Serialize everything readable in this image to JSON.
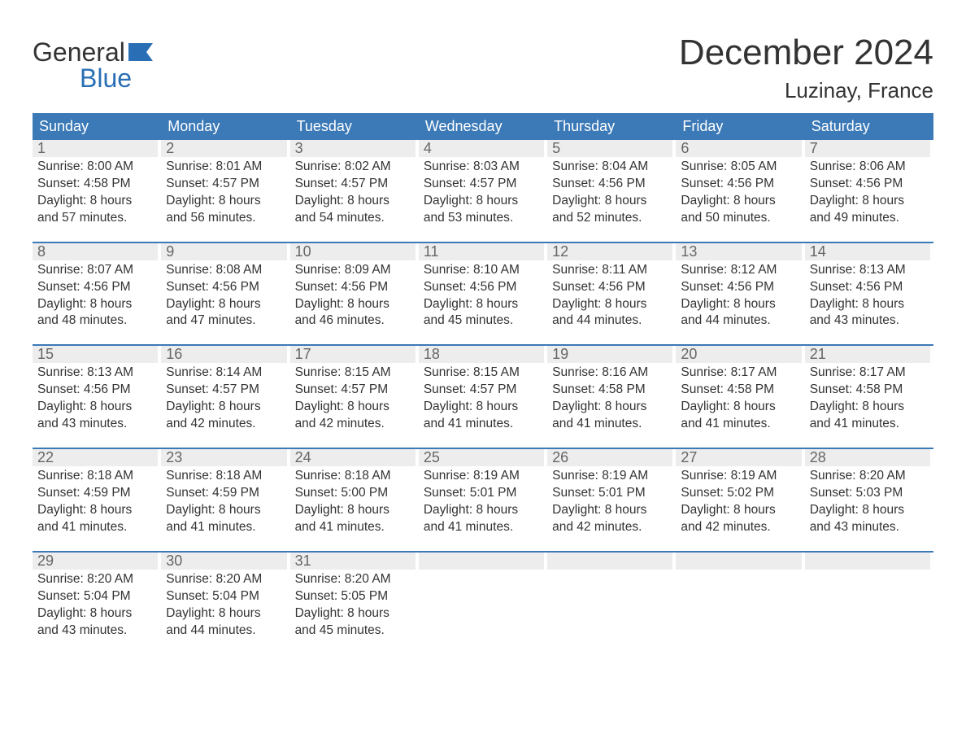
{
  "logo": {
    "line1": "General",
    "line2": "Blue"
  },
  "title": "December 2024",
  "location": "Luzinay, France",
  "colors": {
    "header_bg": "#3b79b7",
    "header_text": "#ffffff",
    "week_border": "#3b79b7",
    "daynum_bg": "#ededed",
    "daynum_text": "#666666",
    "body_text": "#333333",
    "logo_blue": "#2a6fb5",
    "page_bg": "#ffffff"
  },
  "typography": {
    "title_fontsize": 44,
    "location_fontsize": 26,
    "dow_fontsize": 18,
    "daynum_fontsize": 18,
    "body_fontsize": 15.5,
    "font_family": "Arial"
  },
  "days_of_week": [
    "Sunday",
    "Monday",
    "Tuesday",
    "Wednesday",
    "Thursday",
    "Friday",
    "Saturday"
  ],
  "weeks": [
    [
      {
        "num": "1",
        "sunrise": "Sunrise: 8:00 AM",
        "sunset": "Sunset: 4:58 PM",
        "daylight1": "Daylight: 8 hours",
        "daylight2": "and 57 minutes."
      },
      {
        "num": "2",
        "sunrise": "Sunrise: 8:01 AM",
        "sunset": "Sunset: 4:57 PM",
        "daylight1": "Daylight: 8 hours",
        "daylight2": "and 56 minutes."
      },
      {
        "num": "3",
        "sunrise": "Sunrise: 8:02 AM",
        "sunset": "Sunset: 4:57 PM",
        "daylight1": "Daylight: 8 hours",
        "daylight2": "and 54 minutes."
      },
      {
        "num": "4",
        "sunrise": "Sunrise: 8:03 AM",
        "sunset": "Sunset: 4:57 PM",
        "daylight1": "Daylight: 8 hours",
        "daylight2": "and 53 minutes."
      },
      {
        "num": "5",
        "sunrise": "Sunrise: 8:04 AM",
        "sunset": "Sunset: 4:56 PM",
        "daylight1": "Daylight: 8 hours",
        "daylight2": "and 52 minutes."
      },
      {
        "num": "6",
        "sunrise": "Sunrise: 8:05 AM",
        "sunset": "Sunset: 4:56 PM",
        "daylight1": "Daylight: 8 hours",
        "daylight2": "and 50 minutes."
      },
      {
        "num": "7",
        "sunrise": "Sunrise: 8:06 AM",
        "sunset": "Sunset: 4:56 PM",
        "daylight1": "Daylight: 8 hours",
        "daylight2": "and 49 minutes."
      }
    ],
    [
      {
        "num": "8",
        "sunrise": "Sunrise: 8:07 AM",
        "sunset": "Sunset: 4:56 PM",
        "daylight1": "Daylight: 8 hours",
        "daylight2": "and 48 minutes."
      },
      {
        "num": "9",
        "sunrise": "Sunrise: 8:08 AM",
        "sunset": "Sunset: 4:56 PM",
        "daylight1": "Daylight: 8 hours",
        "daylight2": "and 47 minutes."
      },
      {
        "num": "10",
        "sunrise": "Sunrise: 8:09 AM",
        "sunset": "Sunset: 4:56 PM",
        "daylight1": "Daylight: 8 hours",
        "daylight2": "and 46 minutes."
      },
      {
        "num": "11",
        "sunrise": "Sunrise: 8:10 AM",
        "sunset": "Sunset: 4:56 PM",
        "daylight1": "Daylight: 8 hours",
        "daylight2": "and 45 minutes."
      },
      {
        "num": "12",
        "sunrise": "Sunrise: 8:11 AM",
        "sunset": "Sunset: 4:56 PM",
        "daylight1": "Daylight: 8 hours",
        "daylight2": "and 44 minutes."
      },
      {
        "num": "13",
        "sunrise": "Sunrise: 8:12 AM",
        "sunset": "Sunset: 4:56 PM",
        "daylight1": "Daylight: 8 hours",
        "daylight2": "and 44 minutes."
      },
      {
        "num": "14",
        "sunrise": "Sunrise: 8:13 AM",
        "sunset": "Sunset: 4:56 PM",
        "daylight1": "Daylight: 8 hours",
        "daylight2": "and 43 minutes."
      }
    ],
    [
      {
        "num": "15",
        "sunrise": "Sunrise: 8:13 AM",
        "sunset": "Sunset: 4:56 PM",
        "daylight1": "Daylight: 8 hours",
        "daylight2": "and 43 minutes."
      },
      {
        "num": "16",
        "sunrise": "Sunrise: 8:14 AM",
        "sunset": "Sunset: 4:57 PM",
        "daylight1": "Daylight: 8 hours",
        "daylight2": "and 42 minutes."
      },
      {
        "num": "17",
        "sunrise": "Sunrise: 8:15 AM",
        "sunset": "Sunset: 4:57 PM",
        "daylight1": "Daylight: 8 hours",
        "daylight2": "and 42 minutes."
      },
      {
        "num": "18",
        "sunrise": "Sunrise: 8:15 AM",
        "sunset": "Sunset: 4:57 PM",
        "daylight1": "Daylight: 8 hours",
        "daylight2": "and 41 minutes."
      },
      {
        "num": "19",
        "sunrise": "Sunrise: 8:16 AM",
        "sunset": "Sunset: 4:58 PM",
        "daylight1": "Daylight: 8 hours",
        "daylight2": "and 41 minutes."
      },
      {
        "num": "20",
        "sunrise": "Sunrise: 8:17 AM",
        "sunset": "Sunset: 4:58 PM",
        "daylight1": "Daylight: 8 hours",
        "daylight2": "and 41 minutes."
      },
      {
        "num": "21",
        "sunrise": "Sunrise: 8:17 AM",
        "sunset": "Sunset: 4:58 PM",
        "daylight1": "Daylight: 8 hours",
        "daylight2": "and 41 minutes."
      }
    ],
    [
      {
        "num": "22",
        "sunrise": "Sunrise: 8:18 AM",
        "sunset": "Sunset: 4:59 PM",
        "daylight1": "Daylight: 8 hours",
        "daylight2": "and 41 minutes."
      },
      {
        "num": "23",
        "sunrise": "Sunrise: 8:18 AM",
        "sunset": "Sunset: 4:59 PM",
        "daylight1": "Daylight: 8 hours",
        "daylight2": "and 41 minutes."
      },
      {
        "num": "24",
        "sunrise": "Sunrise: 8:18 AM",
        "sunset": "Sunset: 5:00 PM",
        "daylight1": "Daylight: 8 hours",
        "daylight2": "and 41 minutes."
      },
      {
        "num": "25",
        "sunrise": "Sunrise: 8:19 AM",
        "sunset": "Sunset: 5:01 PM",
        "daylight1": "Daylight: 8 hours",
        "daylight2": "and 41 minutes."
      },
      {
        "num": "26",
        "sunrise": "Sunrise: 8:19 AM",
        "sunset": "Sunset: 5:01 PM",
        "daylight1": "Daylight: 8 hours",
        "daylight2": "and 42 minutes."
      },
      {
        "num": "27",
        "sunrise": "Sunrise: 8:19 AM",
        "sunset": "Sunset: 5:02 PM",
        "daylight1": "Daylight: 8 hours",
        "daylight2": "and 42 minutes."
      },
      {
        "num": "28",
        "sunrise": "Sunrise: 8:20 AM",
        "sunset": "Sunset: 5:03 PM",
        "daylight1": "Daylight: 8 hours",
        "daylight2": "and 43 minutes."
      }
    ],
    [
      {
        "num": "29",
        "sunrise": "Sunrise: 8:20 AM",
        "sunset": "Sunset: 5:04 PM",
        "daylight1": "Daylight: 8 hours",
        "daylight2": "and 43 minutes."
      },
      {
        "num": "30",
        "sunrise": "Sunrise: 8:20 AM",
        "sunset": "Sunset: 5:04 PM",
        "daylight1": "Daylight: 8 hours",
        "daylight2": "and 44 minutes."
      },
      {
        "num": "31",
        "sunrise": "Sunrise: 8:20 AM",
        "sunset": "Sunset: 5:05 PM",
        "daylight1": "Daylight: 8 hours",
        "daylight2": "and 45 minutes."
      },
      {
        "empty": true
      },
      {
        "empty": true
      },
      {
        "empty": true
      },
      {
        "empty": true
      }
    ]
  ]
}
